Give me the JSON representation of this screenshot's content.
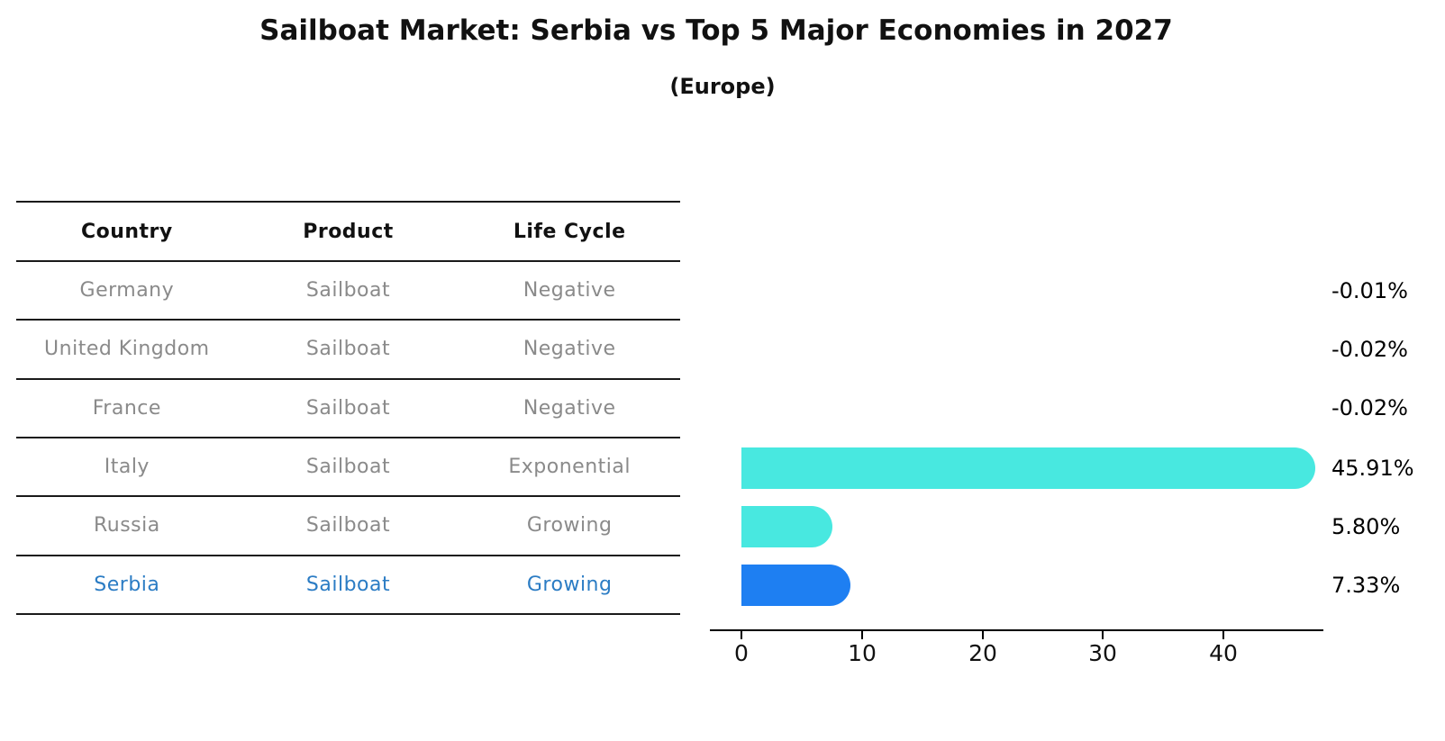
{
  "table": {
    "headers": [
      "Country",
      "Product",
      "Life Cycle"
    ],
    "rows": [
      {
        "country": "Germany",
        "product": "Sailboat",
        "life_cycle": "Negative",
        "highlight": false
      },
      {
        "country": "United Kingdom",
        "product": "Sailboat",
        "life_cycle": "Negative",
        "highlight": false
      },
      {
        "country": "France",
        "product": "Sailboat",
        "life_cycle": "Negative",
        "highlight": false
      },
      {
        "country": "Italy",
        "product": "Sailboat",
        "life_cycle": "Exponential",
        "highlight": false
      },
      {
        "country": "Russia",
        "product": "Sailboat",
        "life_cycle": "Growing",
        "highlight": false
      },
      {
        "country": "Serbia",
        "product": "Sailboat",
        "life_cycle": "Growing",
        "highlight": true
      }
    ]
  },
  "chart_data": {
    "type": "bar",
    "orientation": "horizontal",
    "title": "Sailboat Market: Serbia vs Top 5 Major Economies in 2027",
    "subtitle": "(Europe)",
    "categories": [
      "Germany",
      "United Kingdom",
      "France",
      "Italy",
      "Russia",
      "Serbia"
    ],
    "values": [
      -0.01,
      -0.02,
      -0.02,
      45.91,
      5.8,
      7.33
    ],
    "value_labels": [
      "-0.01%",
      "-0.02%",
      "-0.02%",
      "45.91%",
      "5.80%",
      "7.33%"
    ],
    "xlim": [
      0,
      48
    ],
    "xticks": [
      0,
      10,
      20,
      30,
      40
    ],
    "xtick_labels": [
      "0",
      "10",
      "20",
      "30",
      "40"
    ],
    "grid": false,
    "legend": "none",
    "bar_color": "#48e8e0",
    "highlight_color": "#1e7ff2",
    "highlight_index": 5,
    "text_gray": "#8a8a8a",
    "highlight_text_color": "#2b7cc4"
  }
}
